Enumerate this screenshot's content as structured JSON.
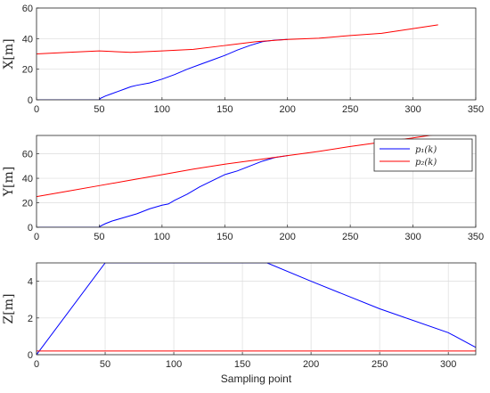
{
  "chart_data": [
    {
      "type": "line",
      "title": "",
      "xlabel": "",
      "ylabel": "X[m]",
      "xlim": [
        0,
        350
      ],
      "ylim": [
        0,
        60
      ],
      "xticks": [
        0,
        50,
        100,
        150,
        200,
        250,
        300,
        350
      ],
      "yticks": [
        0,
        20,
        40,
        60
      ],
      "grid": true,
      "series": [
        {
          "color": "#0000ff",
          "points": [
            [
              0,
              0
            ],
            [
              50,
              0
            ],
            [
              51,
              1
            ],
            [
              55,
              2.5
            ],
            [
              60,
              4
            ],
            [
              65,
              5.5
            ],
            [
              70,
              7
            ],
            [
              75,
              8.5
            ],
            [
              80,
              9.5
            ],
            [
              90,
              11
            ],
            [
              100,
              13.5
            ],
            [
              110,
              16.5
            ],
            [
              120,
              20
            ],
            [
              130,
              23
            ],
            [
              140,
              26
            ],
            [
              150,
              29
            ],
            [
              160,
              32.5
            ],
            [
              170,
              35.5
            ],
            [
              180,
              38
            ],
            [
              190,
              39
            ],
            [
              200,
              39.5
            ]
          ]
        },
        {
          "color": "#ff0000",
          "points": [
            [
              0,
              30
            ],
            [
              25,
              31
            ],
            [
              50,
              32
            ],
            [
              75,
              31
            ],
            [
              100,
              32
            ],
            [
              125,
              33
            ],
            [
              150,
              35.5
            ],
            [
              175,
              38
            ],
            [
              200,
              39.5
            ],
            [
              225,
              40.3
            ],
            [
              250,
              42
            ],
            [
              275,
              43.5
            ],
            [
              300,
              46.5
            ],
            [
              320,
              49
            ]
          ]
        }
      ]
    },
    {
      "type": "line",
      "title": "",
      "xlabel": "",
      "ylabel": "Y[m]",
      "xlim": [
        0,
        350
      ],
      "ylim": [
        0,
        75
      ],
      "xticks": [
        0,
        50,
        100,
        150,
        200,
        250,
        300,
        350
      ],
      "yticks": [
        0,
        20,
        40,
        60
      ],
      "grid": true,
      "legend": {
        "position": "top-right",
        "entries": [
          {
            "label": "p₁(k)",
            "color": "#0000ff"
          },
          {
            "label": "p₂(k)",
            "color": "#ff0000"
          }
        ]
      },
      "series": [
        {
          "name": "p₁(k)",
          "color": "#0000ff",
          "points": [
            [
              0,
              0
            ],
            [
              50,
              0
            ],
            [
              51,
              1
            ],
            [
              55,
              3
            ],
            [
              60,
              5
            ],
            [
              70,
              8
            ],
            [
              80,
              11
            ],
            [
              90,
              15
            ],
            [
              100,
              18
            ],
            [
              105,
              19
            ],
            [
              110,
              22
            ],
            [
              120,
              27
            ],
            [
              130,
              33
            ],
            [
              140,
              38
            ],
            [
              150,
              43
            ],
            [
              160,
              46
            ],
            [
              170,
              50
            ],
            [
              180,
              54
            ],
            [
              190,
              57
            ],
            [
              200,
              58.5
            ]
          ]
        },
        {
          "name": "p₂(k)",
          "color": "#ff0000",
          "points": [
            [
              0,
              25
            ],
            [
              25,
              29.5
            ],
            [
              50,
              34
            ],
            [
              75,
              38.5
            ],
            [
              100,
              43
            ],
            [
              125,
              47.5
            ],
            [
              150,
              51.5
            ],
            [
              175,
              55
            ],
            [
              200,
              58.5
            ],
            [
              225,
              62
            ],
            [
              250,
              66
            ],
            [
              275,
              69.5
            ],
            [
              300,
              73
            ],
            [
              320,
              76
            ]
          ]
        }
      ]
    },
    {
      "type": "line",
      "title": "",
      "xlabel": "Sampling point",
      "ylabel": "Z[m]",
      "xlim": [
        0,
        320
      ],
      "ylim": [
        0,
        5
      ],
      "xticks": [
        0,
        50,
        100,
        150,
        200,
        250,
        300
      ],
      "yticks": [
        0,
        2,
        4
      ],
      "grid": true,
      "series": [
        {
          "color": "#0000ff",
          "points": [
            [
              0,
              0
            ],
            [
              50,
              5
            ],
            [
              168,
              5
            ],
            [
              200,
              4
            ],
            [
              250,
              2.5
            ],
            [
              300,
              1.2
            ],
            [
              320,
              0.4
            ]
          ]
        },
        {
          "color": "#ff0000",
          "points": [
            [
              0,
              0.2
            ],
            [
              320,
              0.2
            ]
          ]
        }
      ]
    }
  ]
}
